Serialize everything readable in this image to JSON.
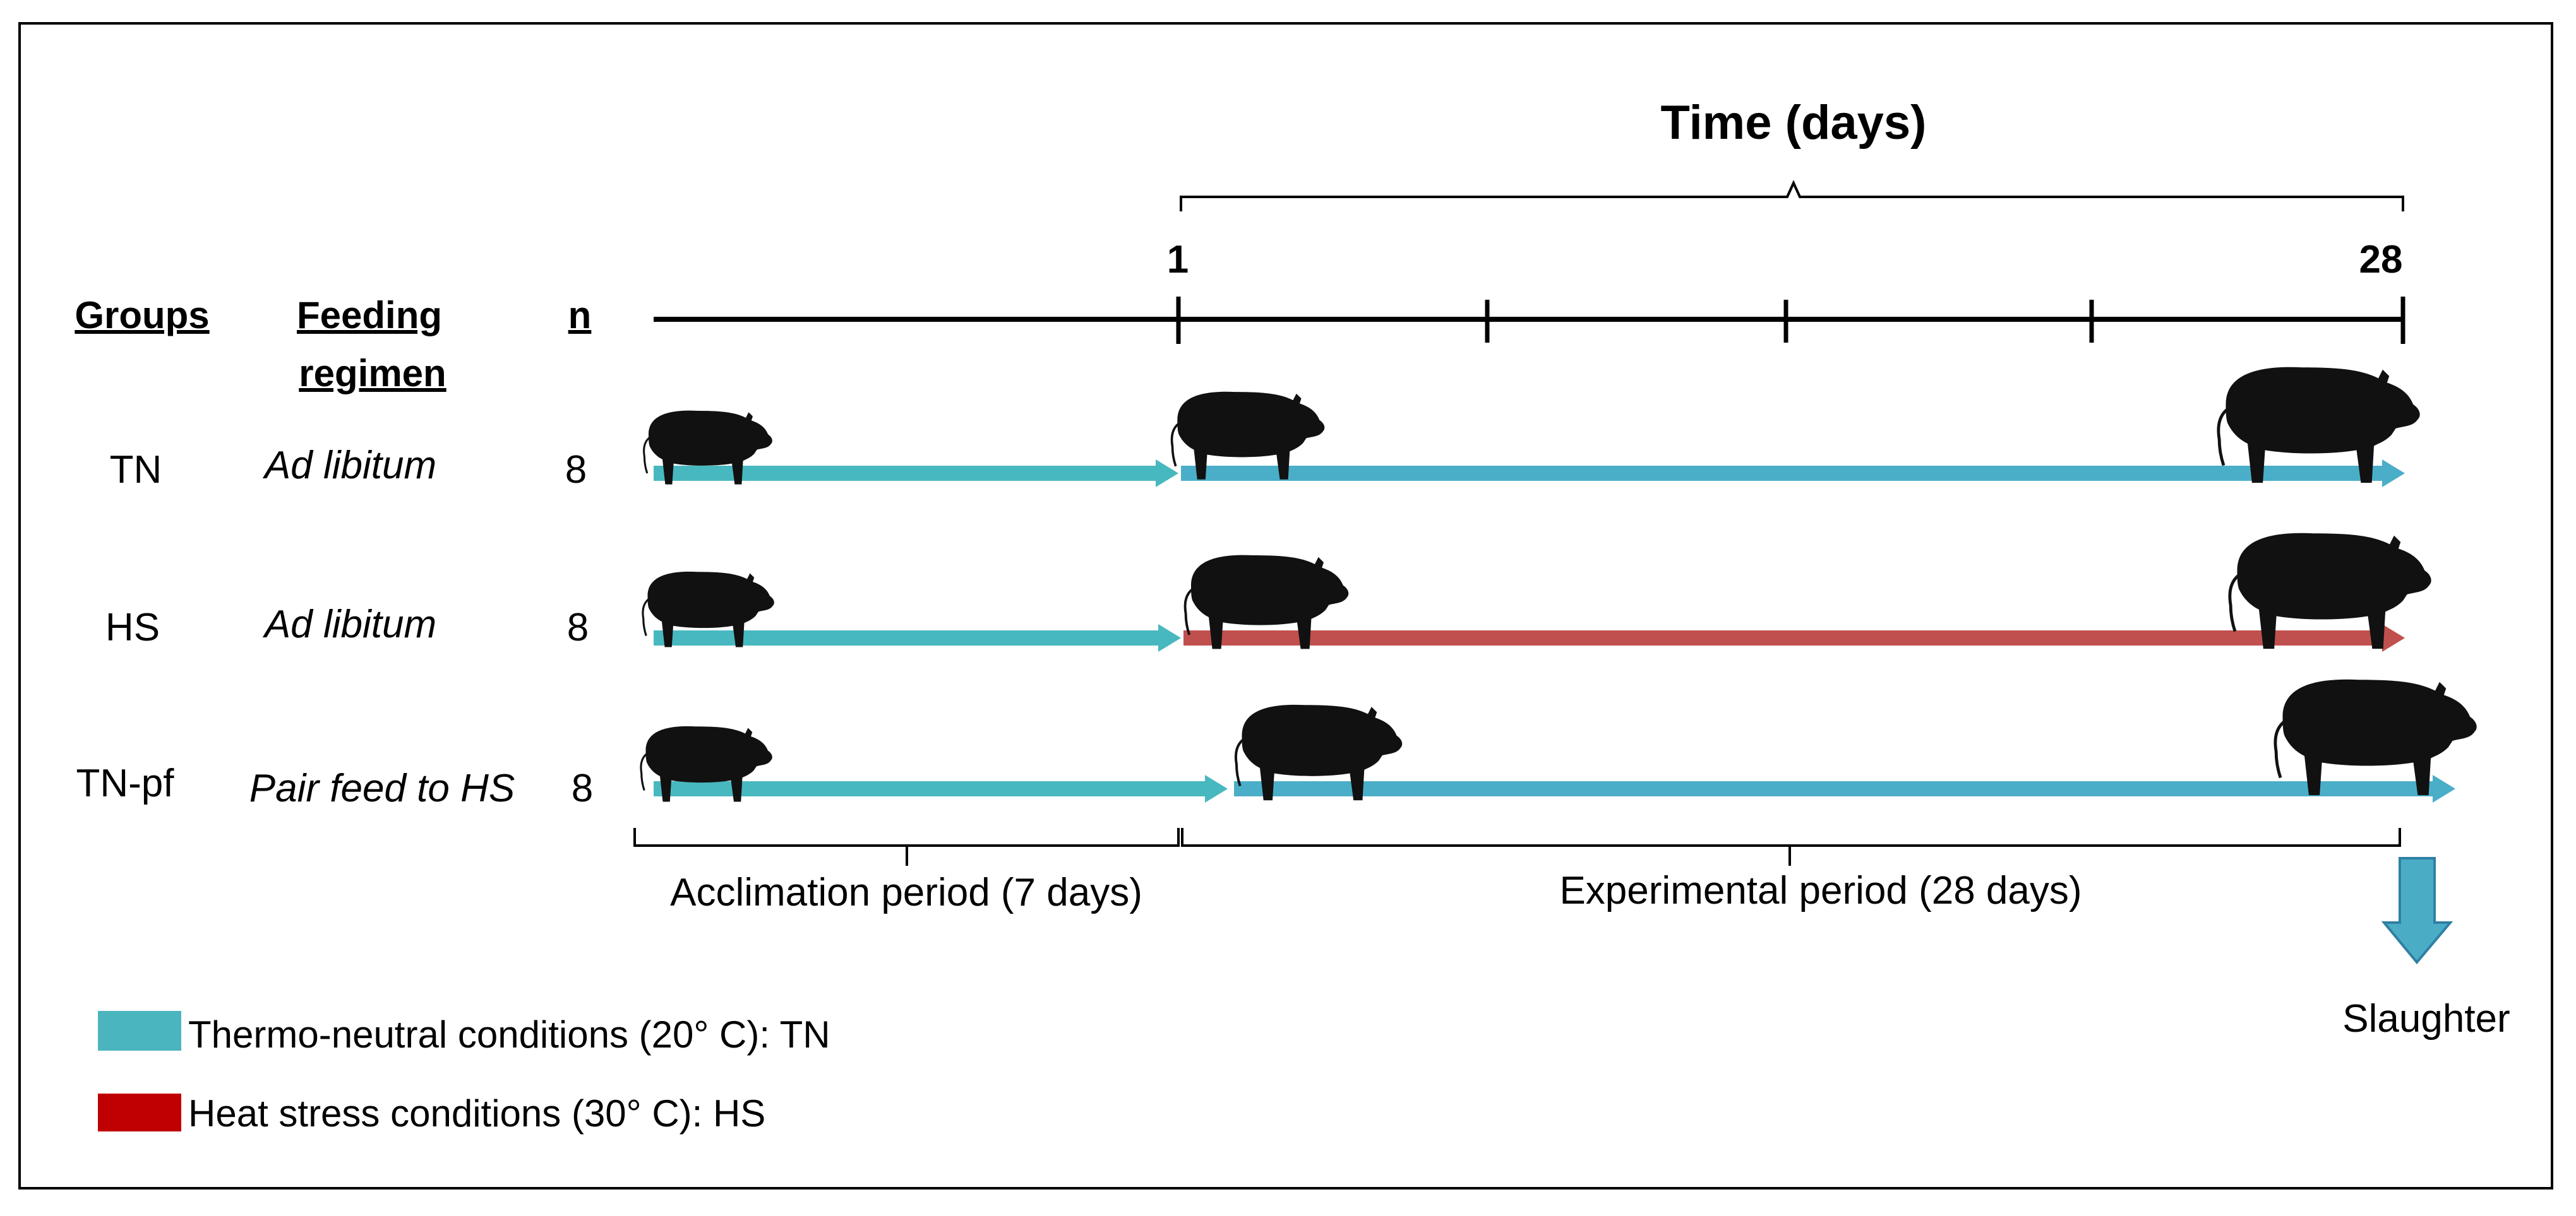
{
  "title": "Time (days)",
  "headers": {
    "groups": "Groups",
    "feeding_line1": "Feeding",
    "feeding_line2": "regimen",
    "n": "n"
  },
  "timeline": {
    "start_label": "1",
    "end_label": "28"
  },
  "groups": [
    {
      "name": "TN",
      "feeding": "Ad libitum",
      "n": "8",
      "experimental_condition": "TN"
    },
    {
      "name": "HS",
      "feeding": "Ad libitum",
      "n": "8",
      "experimental_condition": "HS"
    },
    {
      "name": "TN-pf",
      "feeding": "Pair feed to HS",
      "n": "8",
      "experimental_condition": "TN"
    }
  ],
  "periods": {
    "acclimation": "Acclimation period (7 days)",
    "experimental": "Experimental period (28 days)"
  },
  "slaughter": "Slaughter",
  "legend": [
    {
      "label": "Thermo-neutral conditions (20° C): TN",
      "color": "#4AB5BE"
    },
    {
      "label": "Heat stress conditions (30° C):  HS",
      "color": "#C00000"
    }
  ],
  "colors": {
    "tn_arrow": "#4BAEC8",
    "acclimation_arrow": "#48B8C0",
    "hs_arrow": "#C0504D",
    "slaughter_arrow": "#4BACC6",
    "pig": "#111111"
  },
  "icons": [
    "pig-icon",
    "slaughter-arrow-icon"
  ]
}
